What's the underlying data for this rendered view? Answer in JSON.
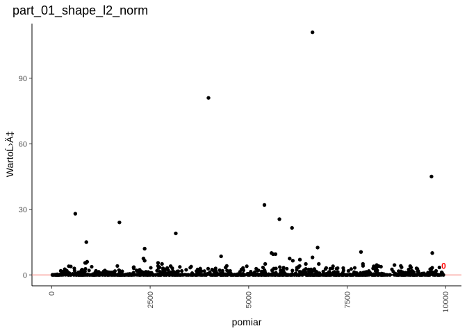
{
  "chart_data": {
    "type": "scatter",
    "title": "part_01_shape_l2_norm",
    "xlabel": "pomiar",
    "ylabel": "WartoĹ›Ä‡",
    "xlim": [
      -500,
      10400
    ],
    "ylim": [
      -5,
      115
    ],
    "x_ticks": [
      0,
      2500,
      5000,
      7500,
      10000
    ],
    "x_tick_labels": [
      "0",
      "2500",
      "5000",
      "7500",
      "10000"
    ],
    "y_ticks": [
      0,
      30,
      60,
      90
    ],
    "y_tick_labels": [
      "0",
      "30",
      "60",
      "90"
    ],
    "grid": false,
    "legend": "none",
    "hline": {
      "y": 0,
      "color": "#f8766d"
    },
    "highlight": {
      "x": 9950,
      "y": 4,
      "label": "0",
      "color": "#ff0000"
    },
    "series": [
      {
        "color": "#000000",
        "x": [
          600,
          880,
          1720,
          2360,
          3150,
          3980,
          5400,
          5580,
          5780,
          6100,
          6620,
          6750,
          7850,
          9640,
          9660,
          850,
          870,
          900,
          2330,
          2360,
          2700,
          2800,
          3020,
          4300,
          5620,
          5680,
          6040,
          6120,
          6300,
          6450,
          6620,
          6780,
          7900,
          8250,
          8700,
          9100,
          8880,
          8300,
          5420
        ],
        "values": [
          28,
          15,
          24,
          12,
          19,
          81,
          32,
          10,
          25.5,
          21.5,
          111,
          12.5,
          10.5,
          45,
          10,
          5.5,
          5.5,
          6,
          7.5,
          6.5,
          5.5,
          5,
          4,
          8.5,
          9.5,
          9.5,
          7.5,
          6.5,
          7,
          5,
          8,
          5,
          5,
          4.5,
          4.5,
          4,
          3.5,
          4,
          5
        ]
      }
    ],
    "dense_band": {
      "x_range": [
        0,
        9950
      ],
      "y_min": 0,
      "y_max": 4.2,
      "count": 1000
    }
  }
}
